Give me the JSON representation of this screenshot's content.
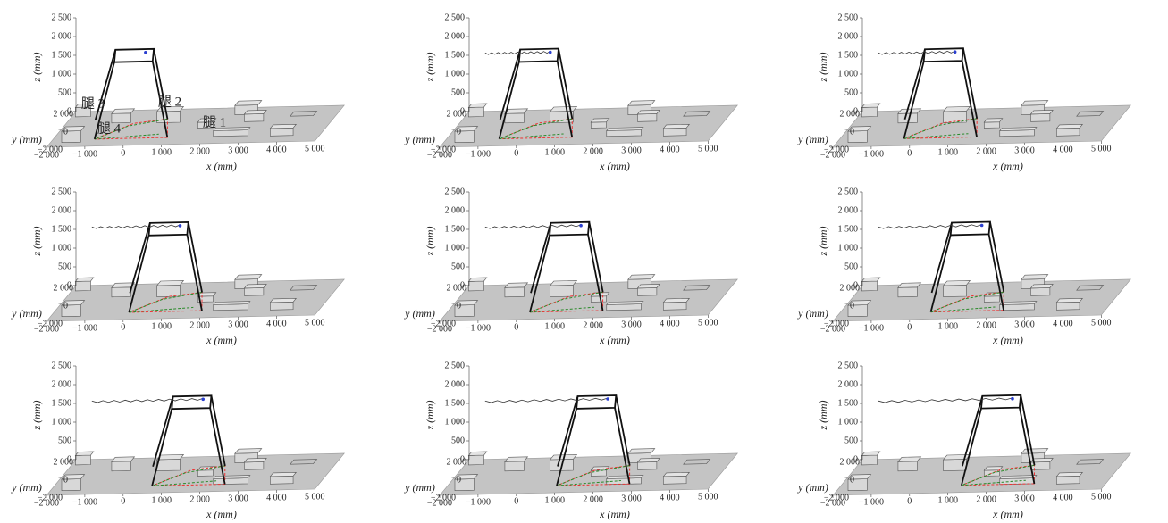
{
  "chart_data": [
    {
      "type": "3d-scene",
      "xlabel": "x (mm)",
      "ylabel": "y (mm)",
      "zlabel": "z (mm)",
      "xlim": [
        -2000,
        5000
      ],
      "ylim": [
        -2000,
        2000
      ],
      "zlim": [
        0,
        2500
      ],
      "xticks": [
        {
          "value": -2000,
          "label": "−2 000"
        },
        {
          "value": -1000,
          "label": "−1 000"
        },
        0,
        {
          "value": 1000,
          "label": "1 000"
        },
        {
          "value": 2000,
          "label": "2 000"
        },
        {
          "value": 3000,
          "label": "3 000"
        },
        {
          "value": 4000,
          "label": "4 000"
        },
        {
          "value": 5000,
          "label": "5 000"
        }
      ],
      "yticks": [
        {
          "value": 2000,
          "label": "2 000"
        },
        0,
        {
          "value": -2000,
          "label": "−2 000"
        }
      ],
      "zticks": [
        0,
        500,
        {
          "value": 1000,
          "label": "1 000"
        },
        {
          "value": 1500,
          "label": "1 500"
        },
        {
          "value": 2000,
          "label": "2 000"
        },
        {
          "value": 2500,
          "label": "2 500"
        }
      ],
      "annotations": [
        "腿 1",
        "腿 2",
        "腿 3",
        "腿 4"
      ]
    },
    {
      "type": "3d-scene",
      "xlabel": "x (mm)",
      "ylabel": "y (mm)",
      "zlabel": "z (mm)",
      "xlim": [
        -2000,
        5000
      ],
      "ylim": [
        -2000,
        2000
      ],
      "zlim": [
        0,
        2500
      ],
      "xticks": [
        {
          "value": -2000,
          "label": "−2 000"
        },
        {
          "value": -1000,
          "label": "−1 000"
        },
        0,
        {
          "value": 1000,
          "label": "1 000"
        },
        {
          "value": 2000,
          "label": "2 000"
        },
        {
          "value": 3000,
          "label": "3 000"
        },
        {
          "value": 4000,
          "label": "4 000"
        },
        {
          "value": 5000,
          "label": "5 000"
        }
      ],
      "yticks": [
        {
          "value": 2000,
          "label": "2 000"
        },
        0,
        {
          "value": -2000,
          "label": "−2 000"
        }
      ],
      "zticks": [
        0,
        500,
        {
          "value": 1000,
          "label": "1 000"
        },
        {
          "value": 1500,
          "label": "1 500"
        },
        {
          "value": 2000,
          "label": "2 000"
        },
        {
          "value": 2500,
          "label": "2 500"
        }
      ]
    },
    {
      "type": "3d-scene",
      "xlabel": "x (mm)",
      "ylabel": "y (mm)",
      "zlabel": "z (mm)",
      "xlim": [
        -2000,
        5000
      ],
      "ylim": [
        -2000,
        2000
      ],
      "zlim": [
        0,
        2500
      ],
      "xticks": [
        {
          "value": -2000,
          "label": "−2 000"
        },
        {
          "value": -1000,
          "label": "−1 000"
        },
        0,
        {
          "value": 1000,
          "label": "1 000"
        },
        {
          "value": 2000,
          "label": "2 000"
        },
        {
          "value": 3000,
          "label": "3 000"
        },
        {
          "value": 4000,
          "label": "4 000"
        },
        {
          "value": 5000,
          "label": "5 000"
        }
      ],
      "yticks": [
        {
          "value": 2000,
          "label": "2 000"
        },
        0,
        {
          "value": -2000,
          "label": "−2 000"
        }
      ],
      "zticks": [
        0,
        500,
        {
          "value": 1000,
          "label": "1 000"
        },
        {
          "value": 1500,
          "label": "1 500"
        },
        {
          "value": 2000,
          "label": "2 000"
        },
        {
          "value": 2500,
          "label": "2 500"
        }
      ]
    },
    {
      "type": "3d-scene",
      "xlabel": "x (mm)",
      "ylabel": "y (mm)",
      "zlabel": "z (mm)",
      "xlim": [
        -2000,
        5000
      ],
      "ylim": [
        -2000,
        2000
      ],
      "zlim": [
        0,
        2500
      ],
      "xticks": [
        {
          "value": -2000,
          "label": "−2 000"
        },
        {
          "value": -1000,
          "label": "−1 000"
        },
        0,
        {
          "value": 1000,
          "label": "1 000"
        },
        {
          "value": 2000,
          "label": "2 000"
        },
        {
          "value": 3000,
          "label": "3 000"
        },
        {
          "value": 4000,
          "label": "4 000"
        },
        {
          "value": 5000,
          "label": "5 000"
        }
      ],
      "yticks": [
        {
          "value": 2000,
          "label": "2 000"
        },
        0,
        {
          "value": -2000,
          "label": "−2 000"
        }
      ],
      "zticks": [
        0,
        500,
        {
          "value": 1000,
          "label": "1 000"
        },
        {
          "value": 1500,
          "label": "1 500"
        },
        {
          "value": 2000,
          "label": "2 000"
        },
        {
          "value": 2500,
          "label": "2 500"
        }
      ]
    },
    {
      "type": "3d-scene",
      "xlabel": "x (mm)",
      "ylabel": "y (mm)",
      "zlabel": "z (mm)",
      "xlim": [
        -2000,
        5000
      ],
      "ylim": [
        -2000,
        2000
      ],
      "zlim": [
        0,
        2500
      ],
      "xticks": [
        {
          "value": -2000,
          "label": "−2 000"
        },
        {
          "value": -1000,
          "label": "−1 000"
        },
        0,
        {
          "value": 1000,
          "label": "1 000"
        },
        {
          "value": 2000,
          "label": "2 000"
        },
        {
          "value": 3000,
          "label": "3 000"
        },
        {
          "value": 4000,
          "label": "4 000"
        },
        {
          "value": 5000,
          "label": "5 000"
        }
      ],
      "yticks": [
        {
          "value": 2000,
          "label": "2 000"
        },
        0,
        {
          "value": -2000,
          "label": "−2 000"
        }
      ],
      "zticks": [
        0,
        500,
        {
          "value": 1000,
          "label": "1 000"
        },
        {
          "value": 1500,
          "label": "1 500"
        },
        {
          "value": 2000,
          "label": "2 000"
        },
        {
          "value": 2500,
          "label": "2 500"
        }
      ]
    },
    {
      "type": "3d-scene",
      "xlabel": "x (mm)",
      "ylabel": "y (mm)",
      "zlabel": "z (mm)",
      "xlim": [
        -2000,
        5000
      ],
      "ylim": [
        -2000,
        2000
      ],
      "zlim": [
        0,
        2500
      ],
      "xticks": [
        {
          "value": -2000,
          "label": "−2 000"
        },
        {
          "value": -1000,
          "label": "−1 000"
        },
        0,
        {
          "value": 1000,
          "label": "1 000"
        },
        {
          "value": 2000,
          "label": "2 000"
        },
        {
          "value": 3000,
          "label": "3 000"
        },
        {
          "value": 4000,
          "label": "4 000"
        },
        {
          "value": 5000,
          "label": "5 000"
        }
      ],
      "yticks": [
        {
          "value": 2000,
          "label": "2 000"
        },
        0,
        {
          "value": -2000,
          "label": "−2 000"
        }
      ],
      "zticks": [
        0,
        500,
        {
          "value": 1000,
          "label": "1 000"
        },
        {
          "value": 1500,
          "label": "1 500"
        },
        {
          "value": 2000,
          "label": "2 000"
        },
        {
          "value": 2500,
          "label": "2 500"
        }
      ]
    },
    {
      "type": "3d-scene",
      "xlabel": "x (mm)",
      "ylabel": "y (mm)",
      "zlabel": "z (mm)",
      "xlim": [
        -2000,
        5000
      ],
      "ylim": [
        -2000,
        2000
      ],
      "zlim": [
        0,
        2500
      ],
      "xticks": [
        {
          "value": -2000,
          "label": "−2 000"
        },
        {
          "value": -1000,
          "label": "−1 000"
        },
        0,
        {
          "value": 1000,
          "label": "1 000"
        },
        {
          "value": 2000,
          "label": "2 000"
        },
        {
          "value": 3000,
          "label": "3 000"
        },
        {
          "value": 4000,
          "label": "4 000"
        },
        {
          "value": 5000,
          "label": "5 000"
        }
      ],
      "yticks": [
        {
          "value": 2000,
          "label": "2 000"
        },
        0,
        {
          "value": -2000,
          "label": "−2 000"
        }
      ],
      "zticks": [
        0,
        500,
        {
          "value": 1000,
          "label": "1 000"
        },
        {
          "value": 1500,
          "label": "1 500"
        },
        {
          "value": 2000,
          "label": "2 000"
        },
        {
          "value": 2500,
          "label": "2 500"
        }
      ]
    },
    {
      "type": "3d-scene",
      "xlabel": "x (mm)",
      "ylabel": "y (mm)",
      "zlabel": "z (mm)",
      "xlim": [
        -2000,
        5000
      ],
      "ylim": [
        -2000,
        2000
      ],
      "zlim": [
        0,
        2500
      ],
      "xticks": [
        {
          "value": -2000,
          "label": "−2 000"
        },
        {
          "value": -1000,
          "label": "−1 000"
        },
        0,
        {
          "value": 1000,
          "label": "1 000"
        },
        {
          "value": 2000,
          "label": "2 000"
        },
        {
          "value": 3000,
          "label": "3 000"
        },
        {
          "value": 4000,
          "label": "4 000"
        },
        {
          "value": 5000,
          "label": "5 000"
        }
      ],
      "yticks": [
        {
          "value": 2000,
          "label": "2 000"
        },
        0,
        {
          "value": -2000,
          "label": "−2 000"
        }
      ],
      "zticks": [
        0,
        500,
        {
          "value": 1000,
          "label": "1 000"
        },
        {
          "value": 1500,
          "label": "1 500"
        },
        {
          "value": 2000,
          "label": "2 000"
        },
        {
          "value": 2500,
          "label": "2 500"
        }
      ]
    },
    {
      "type": "3d-scene",
      "xlabel": "x (mm)",
      "ylabel": "y (mm)",
      "zlabel": "z (mm)",
      "xlim": [
        -2000,
        5000
      ],
      "ylim": [
        -2000,
        2000
      ],
      "zlim": [
        0,
        2500
      ],
      "xticks": [
        {
          "value": -2000,
          "label": "−2 000"
        },
        {
          "value": -1000,
          "label": "−1 000"
        },
        0,
        {
          "value": 1000,
          "label": "1 000"
        },
        {
          "value": 2000,
          "label": "2 000"
        },
        {
          "value": 3000,
          "label": "3 000"
        },
        {
          "value": 4000,
          "label": "4 000"
        },
        {
          "value": 5000,
          "label": "5 000"
        }
      ],
      "yticks": [
        {
          "value": 2000,
          "label": "2 000"
        },
        0,
        {
          "value": -2000,
          "label": "−2 000"
        }
      ],
      "zticks": [
        0,
        500,
        {
          "value": 1000,
          "label": "1 000"
        },
        {
          "value": 1500,
          "label": "1 500"
        },
        {
          "value": 2000,
          "label": "2 000"
        },
        {
          "value": 2500,
          "label": "2 500"
        }
      ]
    }
  ]
}
